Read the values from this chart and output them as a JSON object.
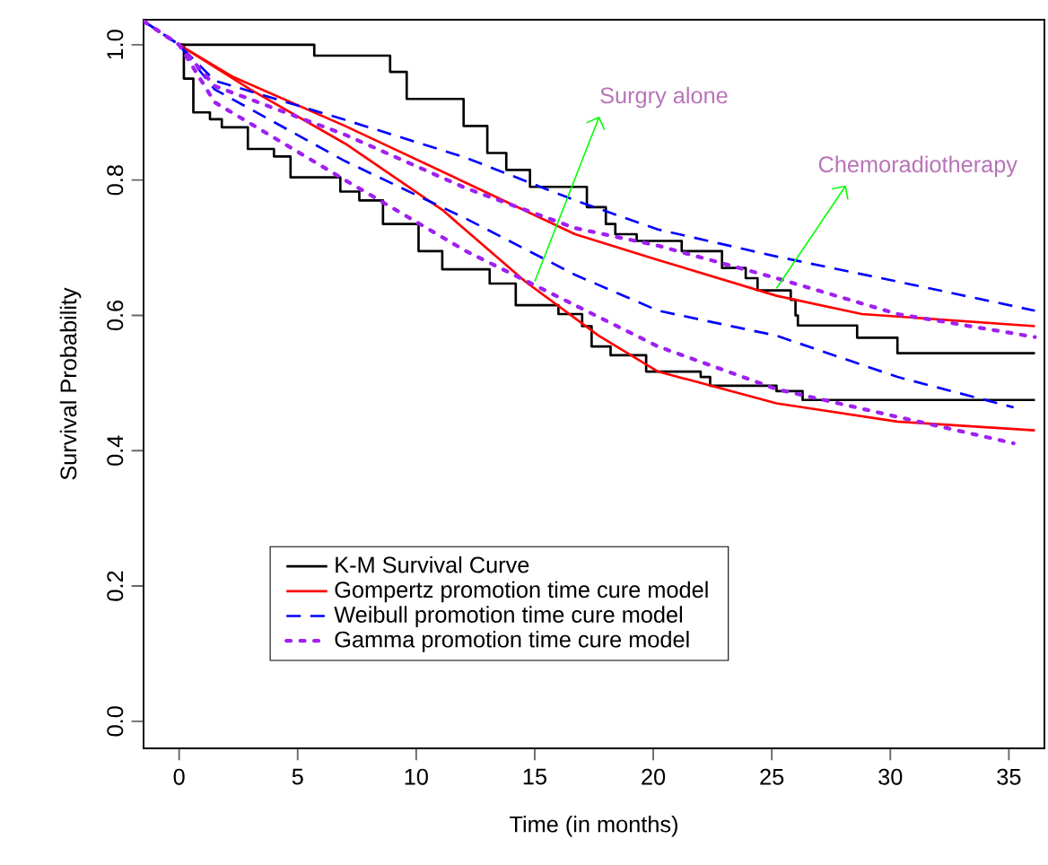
{
  "chart_data": {
    "type": "line",
    "xlabel": "Time (in months)",
    "ylabel": "Survival Probability",
    "xlim": [
      -1.5,
      36.5
    ],
    "ylim": [
      -0.04,
      1.037
    ],
    "xticks": [
      0,
      5,
      10,
      15,
      20,
      25,
      30,
      35
    ],
    "yticks": [
      {
        "value": 0,
        "label": "0.0"
      },
      0.2,
      0.4,
      0.6,
      0.8,
      {
        "value": 1,
        "label": "1.0"
      }
    ],
    "legend": "bottom left",
    "grid": false,
    "marker": "none",
    "annotations": [
      {
        "text": "Surgry alone",
        "x": 15,
        "y": 0.65
      },
      {
        "text": "Chemoradiotherapy",
        "x": 25.2,
        "y": 0.64
      }
    ],
    "series": [
      {
        "name": "K-M Survival Curve",
        "type": "step",
        "color": "#000000",
        "line_style": "solid",
        "x": [
          0,
          5.7,
          8.9,
          9.6,
          12.0,
          13.0,
          13.8,
          14.8,
          17.2,
          18.0,
          18.4,
          19.3,
          21.2,
          22.9,
          23.9,
          24.4,
          25.8,
          26.0,
          26.1,
          28.6,
          30.3,
          36.1
        ],
        "values": [
          1.0,
          0.984,
          0.96,
          0.92,
          0.88,
          0.84,
          0.815,
          0.79,
          0.76,
          0.735,
          0.72,
          0.71,
          0.695,
          0.67,
          0.655,
          0.637,
          0.623,
          0.6,
          0.585,
          0.567,
          0.544,
          0.544
        ]
      },
      {
        "type": "step",
        "color": "#000000",
        "line_style": "solid",
        "x": [
          0,
          0.2,
          0.6,
          1.3,
          1.8,
          2.9,
          4.0,
          4.7,
          6.8,
          7.6,
          8.6,
          10.1,
          11.1,
          13.1,
          14.2,
          16.0,
          17.0,
          17.4,
          18.2,
          19.7,
          22.0,
          22.4,
          25.2,
          26.3,
          36.1
        ],
        "values": [
          1.0,
          0.95,
          0.9,
          0.89,
          0.878,
          0.846,
          0.835,
          0.804,
          0.783,
          0.77,
          0.735,
          0.695,
          0.668,
          0.647,
          0.615,
          0.602,
          0.584,
          0.554,
          0.541,
          0.517,
          0.509,
          0.496,
          0.488,
          0.475,
          0.475
        ]
      },
      {
        "name": "Gompertz promotion time cure model",
        "color": "#ff0000",
        "line_style": "solid",
        "x": [
          0,
          2.3,
          7,
          12.1,
          16.7,
          20.2,
          25.2,
          28.8,
          36.1
        ],
        "values": [
          1.0,
          0.952,
          0.88,
          0.796,
          0.72,
          0.682,
          0.629,
          0.602,
          0.584
        ]
      },
      {
        "color": "#ff0000",
        "line_style": "solid",
        "x": [
          0,
          3,
          7,
          11.1,
          14.6,
          17.7,
          20.2,
          25.2,
          30.3,
          36.1
        ],
        "values": [
          1.0,
          0.934,
          0.854,
          0.756,
          0.65,
          0.57,
          0.517,
          0.47,
          0.443,
          0.43
        ]
      },
      {
        "name": "Weibull promotion time cure model",
        "color": "#0000ff",
        "line_style": "dashed",
        "x": [
          -1.5,
          0,
          1.5,
          7,
          12.1,
          16.7,
          20.2,
          25.2,
          30.3,
          36.1
        ],
        "values": [
          1.035,
          1.0,
          0.947,
          0.889,
          0.833,
          0.77,
          0.727,
          0.687,
          0.65,
          0.607
        ]
      },
      {
        "color": "#0000ff",
        "line_style": "dashed",
        "x": [
          -1.5,
          0,
          1.5,
          7,
          12.1,
          16.7,
          20.2,
          25.2,
          30.3,
          35.2
        ],
        "values": [
          1.035,
          1.0,
          0.934,
          0.828,
          0.743,
          0.66,
          0.607,
          0.57,
          0.509,
          0.464
        ]
      },
      {
        "name": "Gamma promotion time cure model",
        "color": "#a020f0",
        "line_style": "dotted",
        "x": [
          -1.5,
          0,
          1.5,
          7,
          12.1,
          16.7,
          20.2,
          25.2,
          30.3,
          36.1
        ],
        "values": [
          1.035,
          1.0,
          0.939,
          0.867,
          0.788,
          0.729,
          0.703,
          0.655,
          0.602,
          0.568
        ]
      },
      {
        "color": "#a020f0",
        "line_style": "dotted",
        "x": [
          -1.5,
          0,
          1.5,
          7,
          12.1,
          16.7,
          20.2,
          25.2,
          30.3,
          35.2
        ],
        "values": [
          1.035,
          1.0,
          0.915,
          0.8,
          0.695,
          0.615,
          0.554,
          0.491,
          0.45,
          0.411
        ]
      }
    ]
  }
}
